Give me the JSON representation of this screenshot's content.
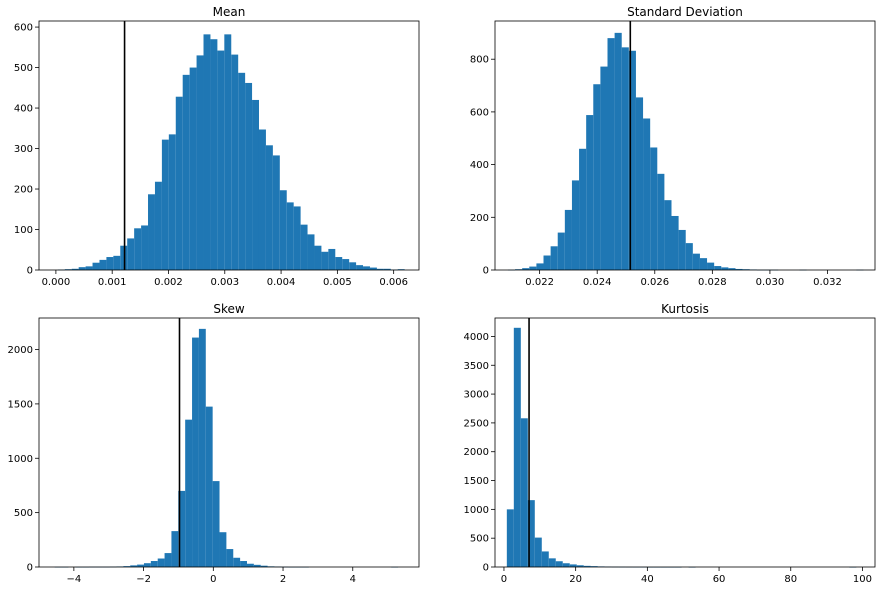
{
  "chart_data": [
    {
      "type": "bar",
      "title": "Mean",
      "xlim": [
        -0.0003,
        0.00645
      ],
      "ylim": [
        0,
        615
      ],
      "xticks": [
        0.0,
        0.001,
        0.002,
        0.003,
        0.004,
        0.005,
        0.006
      ],
      "xtick_labels": [
        "0.000",
        "0.001",
        "0.002",
        "0.003",
        "0.004",
        "0.005",
        "0.006"
      ],
      "yticks": [
        0,
        100,
        200,
        300,
        400,
        500,
        600
      ],
      "ytick_labels": [
        "0",
        "100",
        "200",
        "300",
        "400",
        "500",
        "600"
      ],
      "bin_start": 3.5e-05,
      "bin_width": 0.0001232,
      "values": [
        1,
        2,
        3,
        7,
        9,
        18,
        25,
        32,
        35,
        60,
        78,
        103,
        110,
        187,
        218,
        322,
        335,
        428,
        482,
        500,
        530,
        582,
        570,
        542,
        582,
        532,
        487,
        462,
        420,
        347,
        308,
        283,
        197,
        167,
        157,
        112,
        88,
        60,
        45,
        52,
        32,
        27,
        19,
        12,
        9,
        6,
        3,
        3,
        1,
        2
      ],
      "vline": 0.00122,
      "color": "#1f77b4"
    },
    {
      "type": "bar",
      "title": "Standard Deviation",
      "xlim": [
        0.02045,
        0.03365
      ],
      "ylim": [
        0,
        945
      ],
      "xticks": [
        0.022,
        0.024,
        0.026,
        0.028,
        0.03,
        0.032
      ],
      "xtick_labels": [
        "0.022",
        "0.024",
        "0.026",
        "0.028",
        "0.030",
        "0.032"
      ],
      "yticks": [
        0,
        200,
        400,
        600,
        800
      ],
      "ytick_labels": [
        "0",
        "200",
        "400",
        "600",
        "800"
      ],
      "bin_start": 0.0209,
      "bin_width": 0.000247,
      "values": [
        1,
        3,
        7,
        13,
        25,
        55,
        90,
        142,
        228,
        340,
        460,
        588,
        705,
        772,
        880,
        900,
        845,
        832,
        655,
        575,
        465,
        365,
        265,
        205,
        152,
        102,
        62,
        45,
        28,
        15,
        10,
        7,
        4,
        3,
        2,
        1,
        1,
        1,
        0,
        0,
        0,
        1,
        0,
        0,
        0,
        0,
        0,
        0,
        0,
        1
      ],
      "vline": 0.02515,
      "color": "#1f77b4"
    },
    {
      "type": "bar",
      "title": "Skew",
      "xlim": [
        -5.0,
        5.9
      ],
      "ylim": [
        0,
        2290
      ],
      "xticks": [
        -4,
        -2,
        0,
        2,
        4
      ],
      "xtick_labels": [
        "−4",
        "−2",
        "0",
        "2",
        "4"
      ],
      "yticks": [
        0,
        500,
        1000,
        1500,
        2000
      ],
      "ytick_labels": [
        "0",
        "500",
        "1000",
        "1500",
        "2000"
      ],
      "bin_start": -4.55,
      "bin_width": 0.197,
      "values": [
        1,
        1,
        0,
        1,
        1,
        2,
        2,
        2,
        3,
        5,
        8,
        15,
        22,
        35,
        55,
        78,
        128,
        330,
        700,
        1355,
        2110,
        2190,
        1475,
        790,
        320,
        165,
        85,
        55,
        30,
        20,
        12,
        6,
        4,
        2,
        1,
        1,
        1,
        0,
        0,
        0,
        0,
        0,
        0,
        0,
        0,
        0,
        0,
        0,
        0,
        1
      ],
      "vline": -0.97,
      "color": "#1f77b4"
    },
    {
      "type": "bar",
      "title": "Kurtosis",
      "xlim": [
        -2.5,
        103.5
      ],
      "ylim": [
        0,
        4320
      ],
      "xticks": [
        0,
        20,
        40,
        60,
        80,
        100
      ],
      "xtick_labels": [
        "0",
        "20",
        "40",
        "60",
        "80",
        "100"
      ],
      "yticks": [
        0,
        500,
        1000,
        1500,
        2000,
        2500,
        3000,
        3500,
        4000
      ],
      "ytick_labels": [
        "0",
        "500",
        "1000",
        "1500",
        "2000",
        "2500",
        "3000",
        "3500",
        "4000"
      ],
      "bin_start": 0.8,
      "bin_width": 1.95,
      "values": [
        1000,
        4150,
        2580,
        1160,
        510,
        270,
        150,
        100,
        65,
        45,
        30,
        20,
        15,
        10,
        7,
        5,
        4,
        3,
        2,
        2,
        1,
        1,
        1,
        1,
        1,
        0,
        1,
        0,
        0,
        0,
        0,
        0,
        0,
        0,
        0,
        0,
        0,
        0,
        0,
        0,
        0,
        0,
        0,
        0,
        0,
        0,
        0,
        0,
        0,
        1
      ],
      "vline": 7.0,
      "color": "#1f77b4"
    }
  ]
}
